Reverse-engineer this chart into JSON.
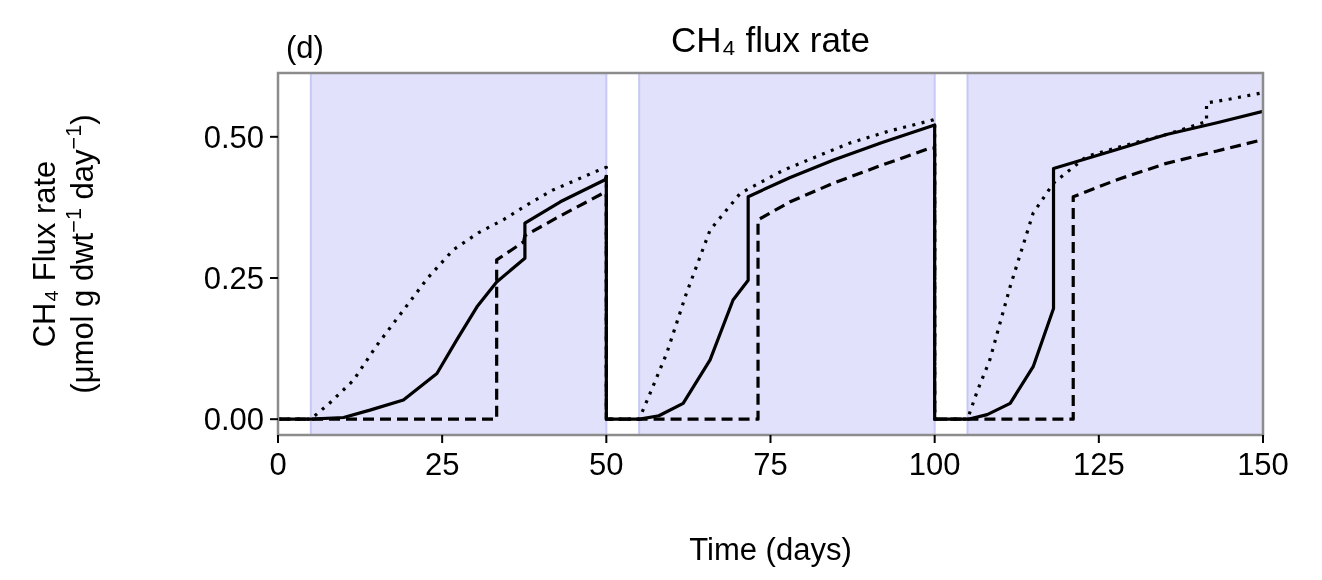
{
  "chart_data": {
    "type": "line",
    "title": "CH₄ flux rate",
    "xlabel": "Time (days)",
    "ylabel": "CH₄ Flux rate\n(μmol g dwt$^{−1}$ day$^{−1}$)",
    "annotations": [
      "(d)"
    ],
    "xlim": [
      0,
      150
    ],
    "xticks": [
      0,
      25,
      50,
      75,
      100,
      125,
      150
    ],
    "ylim": [
      -0.028,
      0.613
    ],
    "yticks": [
      {
        "value": 0,
        "label": "0.00"
      },
      {
        "value": 0.25,
        "label": "0.25"
      },
      {
        "value": 0.5,
        "label": "0.50"
      }
    ],
    "grid": false,
    "bands": [
      {
        "axis": "x",
        "from": 5,
        "to": 50,
        "color": "#e1e1fb"
      },
      {
        "axis": "x",
        "from": 55,
        "to": 100,
        "color": "#e1e1fb"
      },
      {
        "axis": "x",
        "from": 105,
        "to": 150,
        "color": "#e1e1fb"
      }
    ],
    "series": [
      {
        "color": "#000000",
        "line_style": "solid",
        "x": [
          0,
          5,
          10,
          14,
          19.1,
          24.2,
          27.2,
          30.3,
          33.3,
          37.6,
          37.6,
          43,
          49.8,
          50,
          50,
          55.1,
          58,
          61.7,
          65.8,
          69.3,
          71.6,
          71.6,
          78,
          84.6,
          92,
          100,
          100,
          105.1,
          108,
          111.5,
          115,
          118.1,
          118.1,
          127,
          135.3,
          143,
          150
        ],
        "values": [
          0,
          0,
          0.003,
          0.016,
          0.034,
          0.081,
          0.14,
          0.199,
          0.243,
          0.285,
          0.347,
          0.385,
          0.424,
          0.43,
          0,
          0,
          0.006,
          0.028,
          0.105,
          0.211,
          0.246,
          0.394,
          0.428,
          0.459,
          0.49,
          0.521,
          0,
          0,
          0.008,
          0.028,
          0.093,
          0.196,
          0.444,
          0.475,
          0.504,
          0.525,
          0.545
        ]
      },
      {
        "color": "#000000",
        "line_style": "dashed",
        "x": [
          0,
          33.3,
          33.3,
          37.4,
          37.6,
          43,
          49.5,
          50,
          50,
          73.1,
          73.1,
          78,
          84.6,
          92,
          99.3,
          100,
          100,
          121.1,
          121.1,
          128,
          135.3,
          143,
          150
        ],
        "values": [
          0,
          0,
          0.282,
          0.314,
          0.325,
          0.36,
          0.4,
          0.4,
          0,
          0,
          0.353,
          0.385,
          0.418,
          0.45,
          0.48,
          0.48,
          0,
          0,
          0.394,
          0.425,
          0.453,
          0.475,
          0.495
        ]
      },
      {
        "color": "#000000",
        "line_style": "dotted",
        "x": [
          0,
          5,
          8,
          11.5,
          15,
          19.1,
          22.8,
          26.7,
          30.5,
          34.3,
          38,
          41.9,
          45.7,
          49.5,
          50,
          50,
          55,
          57,
          59.2,
          62.2,
          65.8,
          70.4,
          77,
          82,
          87.1,
          93,
          99.8,
          100,
          100,
          105,
          106.5,
          108.4,
          111.5,
          115,
          118.1,
          123.1,
          129,
          135.3,
          141.4,
          141.4,
          145,
          149.5,
          150
        ],
        "values": [
          0,
          0,
          0.03,
          0.069,
          0.13,
          0.193,
          0.25,
          0.3,
          0.33,
          0.353,
          0.38,
          0.406,
          0.425,
          0.444,
          0.446,
          0,
          0,
          0.055,
          0.117,
          0.223,
          0.335,
          0.4,
          0.441,
          0.465,
          0.489,
          0.51,
          0.53,
          0.531,
          0,
          0,
          0.05,
          0.105,
          0.235,
          0.365,
          0.418,
          0.465,
          0.485,
          0.504,
          0.527,
          0.56,
          0.567,
          0.577,
          0.578
        ]
      }
    ]
  }
}
